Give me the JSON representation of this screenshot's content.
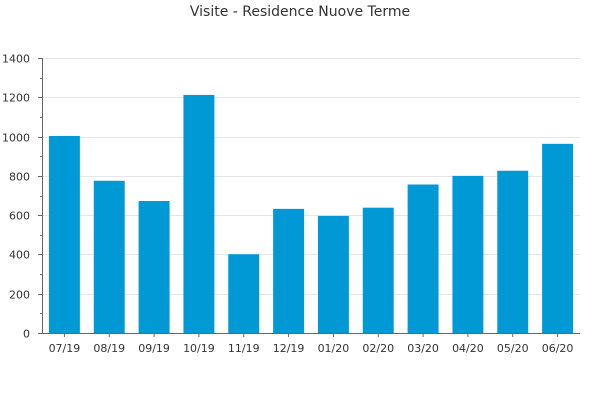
{
  "chart_data": {
    "type": "bar",
    "title": "Visite - Residence Nuove Terme",
    "categories": [
      "07/19",
      "08/19",
      "09/19",
      "10/19",
      "11/19",
      "12/19",
      "01/20",
      "02/20",
      "03/20",
      "04/20",
      "05/20",
      "06/20"
    ],
    "values": [
      1003,
      775,
      672,
      1212,
      401,
      632,
      596,
      638,
      756,
      800,
      826,
      963
    ],
    "ylim": [
      0,
      1400
    ],
    "yticks": [
      0,
      200,
      400,
      600,
      800,
      1000,
      1200,
      1400
    ],
    "grid": true,
    "xlabel": "",
    "ylabel": "",
    "colors": {
      "bar": "#0099d6",
      "grid": "#e6e6e6",
      "axis": "#666666",
      "text": "#333333"
    }
  }
}
